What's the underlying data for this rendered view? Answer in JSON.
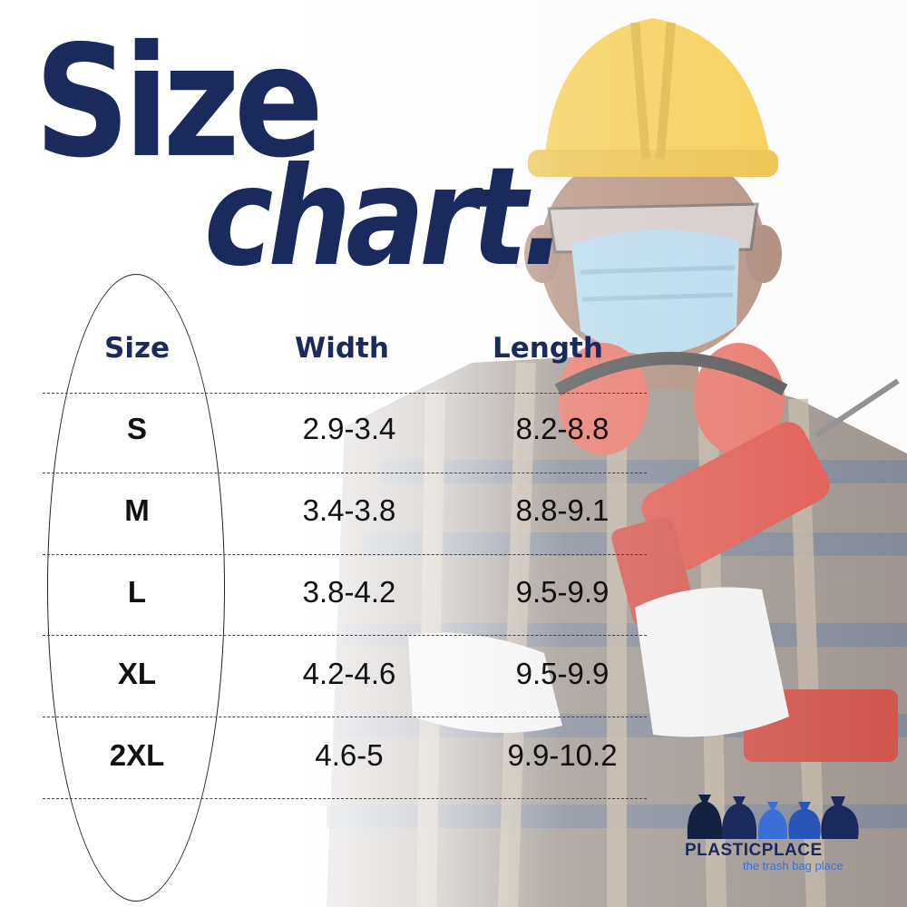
{
  "title": {
    "line1": "Size",
    "line2": "chart."
  },
  "table": {
    "headers": {
      "size": "Size",
      "width": "Width",
      "length": "Length"
    },
    "rows": [
      {
        "size": "S",
        "width": "2.9-3.4",
        "length": "8.2-8.8"
      },
      {
        "size": "M",
        "width": "3.4-3.8",
        "length": "8.8-9.1"
      },
      {
        "size": "L",
        "width": "3.8-4.2",
        "length": "9.5-9.9"
      },
      {
        "size": "XL",
        "width": "4.2-4.6",
        "length": "9.5-9.9"
      },
      {
        "size": "2XL",
        "width": "4.6-5",
        "length": "9.9-10.2"
      }
    ]
  },
  "brand": {
    "name": "PLASTICPLACE",
    "tagline": "the trash bag place"
  },
  "colors": {
    "navy": "#1b2a5c",
    "accent_blue": "#3a6fd8"
  },
  "icons": [
    "worker-illustration",
    "trash-bag-logo-icon"
  ]
}
